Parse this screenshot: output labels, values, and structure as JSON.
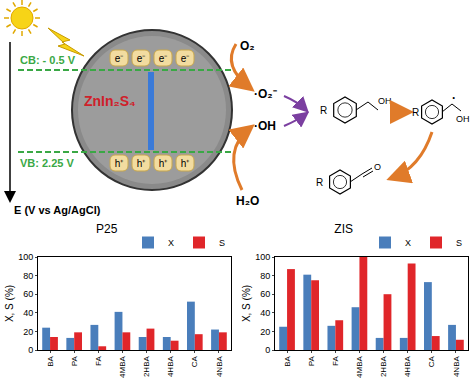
{
  "diagram": {
    "energy_axis": "E (V vs Ag/AgCl)",
    "cb": "CB: - 0.5 V",
    "vb": "VB: 2.25 V",
    "catalyst": "ZnIn₂S₄",
    "electrons": [
      "e⁻",
      "e⁻",
      "e⁻",
      "e⁻"
    ],
    "holes": [
      "h⁺",
      "h⁺",
      "h⁺",
      "h⁺"
    ],
    "reactants": [
      "O₂",
      "H₂O"
    ],
    "radicals": [
      "·O₂⁻",
      "·OH"
    ],
    "molecules": [
      {
        "labels": [
          "R",
          "OH"
        ]
      },
      {
        "labels": [
          "R",
          "·",
          "OH"
        ]
      },
      {
        "labels": [
          "R",
          "O"
        ]
      }
    ]
  },
  "chart_data": [
    {
      "type": "bar",
      "title": "P25",
      "categories": [
        "BA",
        "PA",
        "FA",
        "4MBA",
        "2HBA",
        "4HBA",
        "CA",
        "4NBA"
      ],
      "series": [
        {
          "name": "X",
          "color": "#4a7ebb",
          "values": [
            24,
            13,
            27,
            41,
            14,
            14,
            52,
            22
          ]
        },
        {
          "name": "S",
          "color": "#e0262a",
          "values": [
            14,
            19,
            4,
            19,
            23,
            10,
            17,
            19
          ]
        }
      ],
      "y_label": "X, S (%)",
      "ylim": [
        0,
        100
      ],
      "yticks": [
        0,
        20,
        40,
        60,
        80,
        100
      ],
      "grid": false,
      "legend": "top right"
    },
    {
      "type": "bar",
      "title": "ZIS",
      "categories": [
        "BA",
        "PA",
        "FA",
        "4MBA",
        "2HBA",
        "4HBA",
        "CA",
        "4NBA"
      ],
      "series": [
        {
          "name": "X",
          "color": "#4a7ebb",
          "values": [
            25,
            81,
            26,
            46,
            13,
            13,
            73,
            27
          ]
        },
        {
          "name": "S",
          "color": "#e0262a",
          "values": [
            87,
            75,
            32,
            100,
            60,
            93,
            15,
            11
          ]
        }
      ],
      "y_label": "X, S (%)",
      "ylim": [
        0,
        100
      ],
      "yticks": [
        0,
        20,
        40,
        60,
        80,
        100
      ],
      "grid": false,
      "legend": "top right"
    }
  ]
}
